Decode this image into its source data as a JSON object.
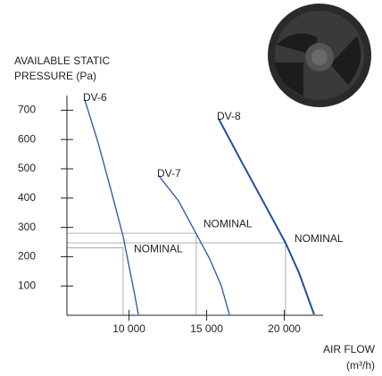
{
  "chart_data": {
    "type": "line",
    "ylabel": [
      "AVAILABLE STATIC",
      "PRESSURE (Pa)"
    ],
    "xlabel": [
      "AIR FLOW",
      "(m³/h)"
    ],
    "xlim": [
      6000,
      22500
    ],
    "ylim": [
      0,
      750
    ],
    "xticks": [
      {
        "value": 10000,
        "label": "10 000"
      },
      {
        "value": 15000,
        "label": "15 000"
      },
      {
        "value": 20000,
        "label": "20 000"
      }
    ],
    "yticks": [
      100,
      200,
      300,
      400,
      500,
      600,
      700
    ],
    "series": [
      {
        "name": "DV-6",
        "color": "#2456a4",
        "x": [
          7150,
          8010,
          8870,
          9620,
          10020,
          10310,
          10600
        ],
        "values": [
          735,
          589,
          421,
          269,
          162,
          85,
          3
        ]
      },
      {
        "name": "DV-7",
        "color": "#2456a4",
        "x": [
          11920,
          13180,
          14330,
          15200,
          15940,
          16460
        ],
        "values": [
          476,
          391,
          278,
          192,
          101,
          3
        ]
      },
      {
        "name": "DV-8",
        "color": "#1f4e9c",
        "x": [
          15770,
          17210,
          18930,
          20080,
          20940,
          21920
        ],
        "values": [
          671,
          528,
          360,
          247,
          146,
          3
        ]
      }
    ],
    "nominal_points": [
      {
        "label": "NOMINAL",
        "x": 9620,
        "y": 230
      },
      {
        "label": "NOMINAL",
        "x": 14330,
        "y": 280
      },
      {
        "label": "NOMINAL",
        "x": 20080,
        "y": 247
      }
    ]
  }
}
